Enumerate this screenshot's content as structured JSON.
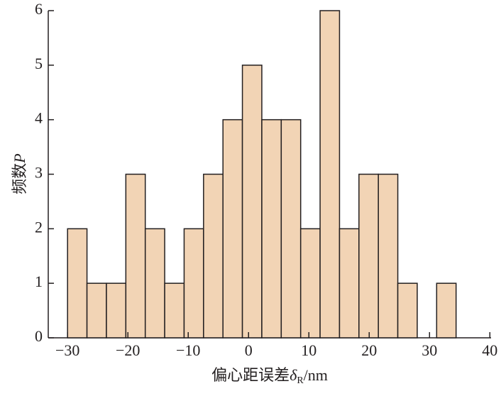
{
  "chart_data": {
    "type": "histogram",
    "ylabel": "频数",
    "ylabel_var": "P",
    "xlabel": "偏心距误差",
    "xlabel_var": "δ",
    "xlabel_sub": "R",
    "xlabel_unit": "/nm",
    "bins": [
      -30,
      -26.78,
      -23.56,
      -20.34,
      -17.12,
      -13.9,
      -10.68,
      -7.46,
      -4.24,
      -1.02,
      2.2,
      5.42,
      8.64,
      11.86,
      15.08,
      18.3,
      21.52,
      24.74,
      27.96,
      31.18,
      34.4
    ],
    "values": [
      2,
      1,
      1,
      3,
      2,
      1,
      2,
      3,
      4,
      5,
      4,
      4,
      2,
      6,
      2,
      3,
      3,
      1,
      0,
      1
    ],
    "color": "#f2d4b5",
    "xlim": [
      -33.2,
      40.2
    ],
    "xticks": [
      {
        "value": -30,
        "label": "−30"
      },
      {
        "value": -20,
        "label": "−20"
      },
      {
        "value": -10,
        "label": "−10"
      },
      0,
      10,
      20,
      30,
      40
    ],
    "ylim": [
      0,
      6
    ],
    "yticks": [
      0,
      1,
      2,
      3,
      4,
      5,
      6
    ]
  }
}
